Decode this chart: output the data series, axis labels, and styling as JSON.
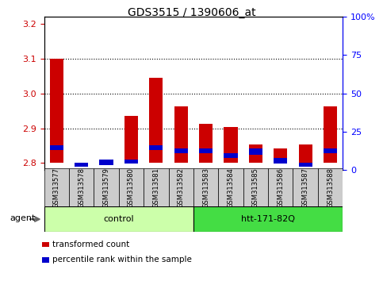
{
  "title": "GDS3515 / 1390606_at",
  "samples": [
    "GSM313577",
    "GSM313578",
    "GSM313579",
    "GSM313580",
    "GSM313581",
    "GSM313582",
    "GSM313583",
    "GSM313584",
    "GSM313585",
    "GSM313586",
    "GSM313587",
    "GSM313588"
  ],
  "red_values": [
    3.1,
    2.801,
    2.801,
    2.935,
    3.045,
    2.963,
    2.913,
    2.903,
    2.853,
    2.843,
    2.853,
    2.963
  ],
  "blue_bottoms_pct": [
    13,
    2,
    3,
    4,
    13,
    11,
    11,
    8,
    10,
    4,
    2,
    11
  ],
  "blue_heights_pct": [
    3,
    3,
    4,
    3,
    3,
    3,
    3,
    3,
    4,
    4,
    3,
    3
  ],
  "baseline": 2.8,
  "ylim_left": [
    2.78,
    3.22
  ],
  "ylim_right": [
    0,
    100
  ],
  "yticks_left": [
    2.8,
    2.9,
    3.0,
    3.1,
    3.2
  ],
  "yticks_right": [
    0,
    25,
    50,
    75,
    100
  ],
  "ytick_labels_right": [
    "0",
    "25",
    "50",
    "75",
    "100%"
  ],
  "groups": [
    {
      "label": "control",
      "start": 0,
      "end": 5,
      "color": "#ccffaa"
    },
    {
      "label": "htt-171-82Q",
      "start": 6,
      "end": 11,
      "color": "#44dd44"
    }
  ],
  "agent_label": "agent",
  "bar_width": 0.55,
  "red_color": "#cc0000",
  "blue_color": "#0000cc",
  "legend_items": [
    {
      "label": "transformed count",
      "color": "#cc0000"
    },
    {
      "label": "percentile rank within the sample",
      "color": "#0000cc"
    }
  ]
}
